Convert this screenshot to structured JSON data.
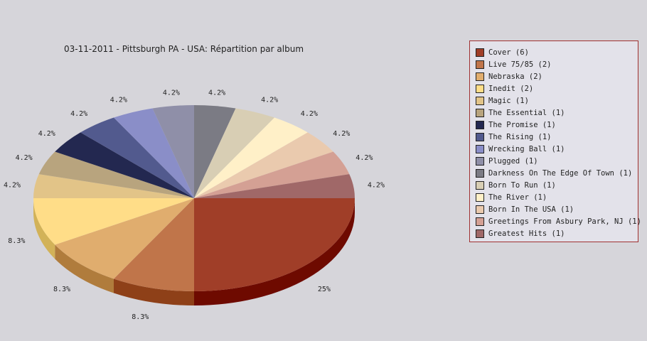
{
  "chart_data": {
    "type": "pie",
    "title": "03-11-2011 - Pittsburgh PA - USA:  Répartition par album",
    "legend_position": "right",
    "slices": [
      {
        "label": "Cover (6)",
        "value": 6,
        "pct_label": "25%",
        "color": "#a03e28",
        "side": "#6e0a00"
      },
      {
        "label": "Live 75/85 (2)",
        "value": 2,
        "pct_label": "8.3%",
        "color": "#c0754a",
        "side": "#8e4018"
      },
      {
        "label": "Nebraska (2)",
        "value": 2,
        "pct_label": "8.3%",
        "color": "#e0ad6e",
        "side": "#b07c3c"
      },
      {
        "label": "Inedit (2)",
        "value": 2,
        "pct_label": "8.3%",
        "color": "#ffdd88",
        "side": "#d2b258"
      },
      {
        "label": "Magic (1)",
        "value": 1,
        "pct_label": "4.2%",
        "color": "#e2c488",
        "side": "#b4985a"
      },
      {
        "label": "The Essential (1)",
        "value": 1,
        "pct_label": "4.2%",
        "color": "#b8a47e",
        "side": "#8a7652"
      },
      {
        "label": "The Promise (1)",
        "value": 1,
        "pct_label": "4.2%",
        "color": "#232850",
        "side": "#10132c"
      },
      {
        "label": "The Rising (1)",
        "value": 1,
        "pct_label": "4.2%",
        "color": "#525a8e",
        "side": "#2c3262"
      },
      {
        "label": "Wrecking Ball (1)",
        "value": 1,
        "pct_label": "4.2%",
        "color": "#8a8ec8",
        "side": "#5c6094"
      },
      {
        "label": "Plugged (1)",
        "value": 1,
        "pct_label": "4.2%",
        "color": "#8f8fa8",
        "side": "#62627c"
      },
      {
        "label": "Darkness On The Edge Of Town (1)",
        "value": 1,
        "pct_label": "4.2%",
        "color": "#7b7b84",
        "side": "#50505a"
      },
      {
        "label": "Born To Run (1)",
        "value": 1,
        "pct_label": "4.2%",
        "color": "#d8ceb4",
        "side": "#aca288"
      },
      {
        "label": "The River (1)",
        "value": 1,
        "pct_label": "4.2%",
        "color": "#fff0c8",
        "side": "#d0c298"
      },
      {
        "label": "Born In The USA (1)",
        "value": 1,
        "pct_label": "4.2%",
        "color": "#eacaae",
        "side": "#bc9c80"
      },
      {
        "label": "Greetings From Asbury Park, NJ (1)",
        "value": 1,
        "pct_label": "4.2%",
        "color": "#d4a094",
        "side": "#a6726a"
      },
      {
        "label": "Greatest Hits (1)",
        "value": 1,
        "pct_label": "4.2%",
        "color": "#a06868",
        "side": "#724040"
      }
    ]
  }
}
